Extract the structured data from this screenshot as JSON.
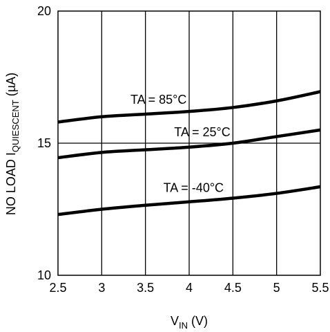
{
  "chart_data": {
    "type": "line",
    "title": "",
    "xlabel": {
      "main": "V",
      "sub": "IN",
      "unit": " (V)"
    },
    "ylabel": {
      "main": "NO LOAD I",
      "sub": "QUIESCENT",
      "unit": " (µA)"
    },
    "xlim": [
      2.5,
      5.5
    ],
    "ylim": [
      10,
      20
    ],
    "xticks": [
      "2.5",
      "3",
      "3.5",
      "4",
      "4.5",
      "5",
      "5.5"
    ],
    "yticks": [
      "10",
      "15",
      "20"
    ],
    "grid": {
      "vertical": true,
      "horizontal_at": [
        15
      ]
    },
    "series": [
      {
        "name": "TA = 85°C",
        "x": [
          2.5,
          3.0,
          3.5,
          4.0,
          4.5,
          5.0,
          5.5
        ],
        "y": [
          15.8,
          16.0,
          16.1,
          16.2,
          16.35,
          16.6,
          16.95
        ]
      },
      {
        "name": "TA = 25°C",
        "x": [
          2.5,
          3.0,
          3.5,
          4.0,
          4.5,
          5.0,
          5.5
        ],
        "y": [
          14.45,
          14.65,
          14.75,
          14.85,
          15.0,
          15.25,
          15.5
        ]
      },
      {
        "name": "TA = -40°C",
        "x": [
          2.5,
          3.0,
          3.5,
          4.0,
          4.5,
          5.0,
          5.5
        ],
        "y": [
          12.3,
          12.5,
          12.65,
          12.78,
          12.92,
          13.1,
          13.35
        ]
      }
    ]
  }
}
